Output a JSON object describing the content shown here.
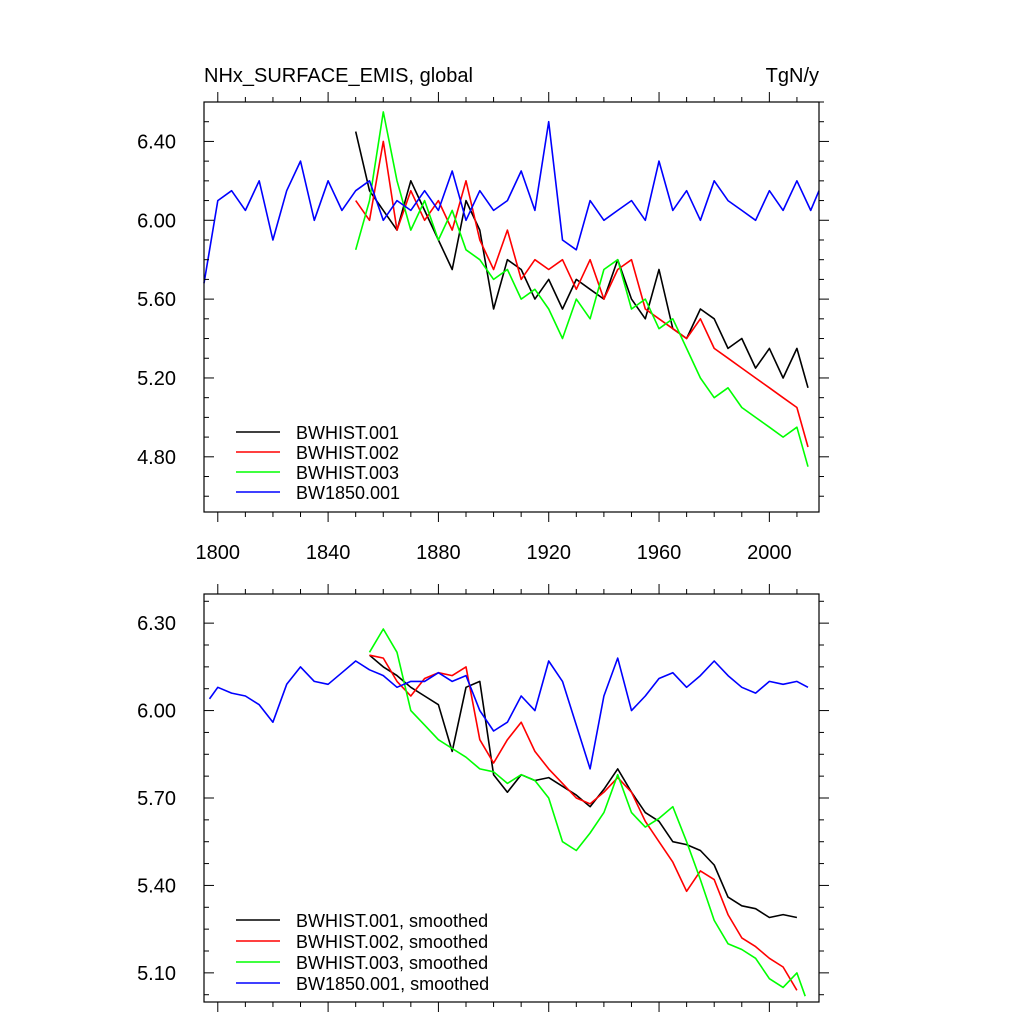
{
  "chart_data": [
    {
      "type": "line",
      "title": "NHx_SURFACE_EMIS, global",
      "units": "TgN/y",
      "xlim": [
        1795,
        2018
      ],
      "ylim": [
        4.52,
        6.6
      ],
      "xticks": [
        1800,
        1840,
        1880,
        1920,
        1960,
        2000
      ],
      "yticks": [
        4.8,
        5.2,
        5.6,
        6.0,
        6.4
      ],
      "ytick_labels": [
        "4.80",
        "5.20",
        "5.60",
        "6.00",
        "6.40"
      ],
      "legend_placement": "bottom-left",
      "series": [
        {
          "name": "BWHIST.001",
          "color": "#000000",
          "x": [
            1850,
            1855,
            1860,
            1865,
            1870,
            1875,
            1880,
            1885,
            1890,
            1895,
            1900,
            1905,
            1910,
            1915,
            1920,
            1925,
            1930,
            1935,
            1940,
            1945,
            1950,
            1955,
            1960,
            1965,
            1970,
            1975,
            1980,
            1985,
            1990,
            1995,
            2000,
            2005,
            2010,
            2014
          ],
          "y": [
            6.45,
            6.15,
            6.05,
            5.95,
            6.2,
            6.05,
            5.9,
            5.75,
            6.1,
            5.95,
            5.55,
            5.8,
            5.75,
            5.6,
            5.7,
            5.55,
            5.7,
            5.65,
            5.6,
            5.8,
            5.6,
            5.5,
            5.75,
            5.45,
            5.4,
            5.55,
            5.5,
            5.35,
            5.4,
            5.25,
            5.35,
            5.2,
            5.35,
            5.15
          ]
        },
        {
          "name": "BWHIST.002",
          "color": "#ff0000",
          "x": [
            1850,
            1855,
            1860,
            1865,
            1870,
            1875,
            1880,
            1885,
            1890,
            1895,
            1900,
            1905,
            1910,
            1915,
            1920,
            1925,
            1930,
            1935,
            1940,
            1945,
            1950,
            1955,
            1960,
            1965,
            1970,
            1975,
            1980,
            1985,
            1990,
            1995,
            2000,
            2005,
            2010,
            2014
          ],
          "y": [
            6.1,
            6.0,
            6.4,
            5.95,
            6.15,
            6.0,
            6.1,
            5.95,
            6.2,
            5.9,
            5.75,
            5.95,
            5.7,
            5.8,
            5.75,
            5.8,
            5.65,
            5.8,
            5.6,
            5.75,
            5.8,
            5.55,
            5.5,
            5.45,
            5.4,
            5.5,
            5.35,
            5.3,
            5.25,
            5.2,
            5.15,
            5.1,
            5.05,
            4.85
          ]
        },
        {
          "name": "BWHIST.003",
          "color": "#00ff00",
          "x": [
            1850,
            1855,
            1860,
            1865,
            1870,
            1875,
            1880,
            1885,
            1890,
            1895,
            1900,
            1905,
            1910,
            1915,
            1920,
            1925,
            1930,
            1935,
            1940,
            1945,
            1950,
            1955,
            1960,
            1965,
            1970,
            1975,
            1980,
            1985,
            1990,
            1995,
            2000,
            2005,
            2010,
            2014
          ],
          "y": [
            5.85,
            6.1,
            6.55,
            6.2,
            5.95,
            6.1,
            5.9,
            6.05,
            5.85,
            5.8,
            5.7,
            5.75,
            5.6,
            5.65,
            5.55,
            5.4,
            5.6,
            5.5,
            5.75,
            5.8,
            5.55,
            5.6,
            5.45,
            5.5,
            5.35,
            5.2,
            5.1,
            5.15,
            5.05,
            5.0,
            4.95,
            4.9,
            4.95,
            4.75
          ]
        },
        {
          "name": "BW1850.001",
          "color": "#0000ff",
          "x": [
            1795,
            1800,
            1805,
            1810,
            1815,
            1820,
            1825,
            1830,
            1835,
            1840,
            1845,
            1850,
            1855,
            1860,
            1865,
            1870,
            1875,
            1880,
            1885,
            1890,
            1895,
            1900,
            1905,
            1910,
            1915,
            1920,
            1925,
            1930,
            1935,
            1940,
            1945,
            1950,
            1955,
            1960,
            1965,
            1970,
            1975,
            1980,
            1985,
            1990,
            1995,
            2000,
            2005,
            2010,
            2015,
            2018
          ],
          "y": [
            5.68,
            6.1,
            6.15,
            6.05,
            6.2,
            5.9,
            6.15,
            6.3,
            6.0,
            6.2,
            6.05,
            6.15,
            6.2,
            6.0,
            6.1,
            6.05,
            6.15,
            6.05,
            6.25,
            6.0,
            6.15,
            6.05,
            6.1,
            6.25,
            6.05,
            6.5,
            5.9,
            5.85,
            6.1,
            6.0,
            6.05,
            6.1,
            6.0,
            6.3,
            6.05,
            6.15,
            6.0,
            6.2,
            6.1,
            6.05,
            6.0,
            6.15,
            6.05,
            6.2,
            6.05,
            6.15
          ]
        }
      ]
    },
    {
      "type": "line",
      "xlim": [
        1795,
        2018
      ],
      "ylim": [
        5.0,
        6.4
      ],
      "xticks": [
        1800,
        1840,
        1880,
        1920,
        1960,
        2000
      ],
      "yticks": [
        5.1,
        5.4,
        5.7,
        6.0,
        6.3
      ],
      "ytick_labels": [
        "5.10",
        "5.40",
        "5.70",
        "6.00",
        "6.30"
      ],
      "legend_placement": "bottom-left",
      "series": [
        {
          "name": "BWHIST.001, smoothed",
          "color": "#000000",
          "x": [
            1855,
            1860,
            1865,
            1870,
            1875,
            1880,
            1885,
            1890,
            1895,
            1900,
            1905,
            1910,
            1915,
            1920,
            1925,
            1930,
            1935,
            1940,
            1945,
            1950,
            1955,
            1960,
            1965,
            1970,
            1975,
            1980,
            1985,
            1990,
            1995,
            2000,
            2005,
            2010
          ],
          "y": [
            6.19,
            6.15,
            6.12,
            6.08,
            6.05,
            6.02,
            5.86,
            6.08,
            6.1,
            5.78,
            5.72,
            5.78,
            5.76,
            5.77,
            5.74,
            5.71,
            5.67,
            5.73,
            5.8,
            5.72,
            5.65,
            5.62,
            5.55,
            5.54,
            5.52,
            5.47,
            5.36,
            5.33,
            5.32,
            5.29,
            5.3,
            5.29
          ]
        },
        {
          "name": "BWHIST.002, smoothed",
          "color": "#ff0000",
          "x": [
            1855,
            1860,
            1865,
            1870,
            1875,
            1880,
            1885,
            1890,
            1895,
            1900,
            1905,
            1910,
            1915,
            1920,
            1925,
            1930,
            1935,
            1940,
            1945,
            1950,
            1955,
            1960,
            1965,
            1970,
            1975,
            1980,
            1985,
            1990,
            1995,
            2000,
            2005,
            2010
          ],
          "y": [
            6.19,
            6.18,
            6.1,
            6.05,
            6.11,
            6.13,
            6.12,
            6.15,
            5.9,
            5.82,
            5.9,
            5.96,
            5.86,
            5.8,
            5.75,
            5.7,
            5.68,
            5.72,
            5.77,
            5.72,
            5.62,
            5.55,
            5.48,
            5.38,
            5.45,
            5.42,
            5.3,
            5.22,
            5.19,
            5.15,
            5.12,
            5.04
          ]
        },
        {
          "name": "BWHIST.003, smoothed",
          "color": "#00ff00",
          "x": [
            1855,
            1860,
            1865,
            1870,
            1875,
            1880,
            1885,
            1890,
            1895,
            1900,
            1905,
            1910,
            1915,
            1920,
            1925,
            1930,
            1935,
            1940,
            1945,
            1950,
            1955,
            1960,
            1965,
            1970,
            1975,
            1980,
            1985,
            1990,
            1995,
            2000,
            2005,
            2010,
            2013
          ],
          "y": [
            6.2,
            6.28,
            6.2,
            6.0,
            5.95,
            5.9,
            5.87,
            5.84,
            5.8,
            5.79,
            5.75,
            5.78,
            5.76,
            5.7,
            5.55,
            5.52,
            5.58,
            5.65,
            5.78,
            5.65,
            5.6,
            5.63,
            5.67,
            5.55,
            5.42,
            5.28,
            5.2,
            5.18,
            5.15,
            5.08,
            5.05,
            5.1,
            5.02
          ]
        },
        {
          "name": "BW1850.001, smoothed",
          "color": "#0000ff",
          "x": [
            1797,
            1800,
            1805,
            1810,
            1815,
            1820,
            1825,
            1830,
            1835,
            1840,
            1845,
            1850,
            1855,
            1860,
            1865,
            1870,
            1875,
            1880,
            1885,
            1890,
            1895,
            1900,
            1905,
            1910,
            1915,
            1920,
            1925,
            1930,
            1935,
            1940,
            1945,
            1950,
            1955,
            1960,
            1965,
            1970,
            1975,
            1980,
            1985,
            1990,
            1995,
            2000,
            2005,
            2010,
            2014
          ],
          "y": [
            6.04,
            6.08,
            6.06,
            6.05,
            6.02,
            5.96,
            6.09,
            6.15,
            6.1,
            6.09,
            6.13,
            6.17,
            6.14,
            6.12,
            6.08,
            6.1,
            6.1,
            6.13,
            6.1,
            6.12,
            6.0,
            5.93,
            5.96,
            6.05,
            6.0,
            6.17,
            6.1,
            5.95,
            5.8,
            6.05,
            6.18,
            6.0,
            6.05,
            6.11,
            6.13,
            6.08,
            6.12,
            6.17,
            6.12,
            6.08,
            6.06,
            6.1,
            6.09,
            6.1,
            6.08
          ]
        }
      ]
    }
  ]
}
